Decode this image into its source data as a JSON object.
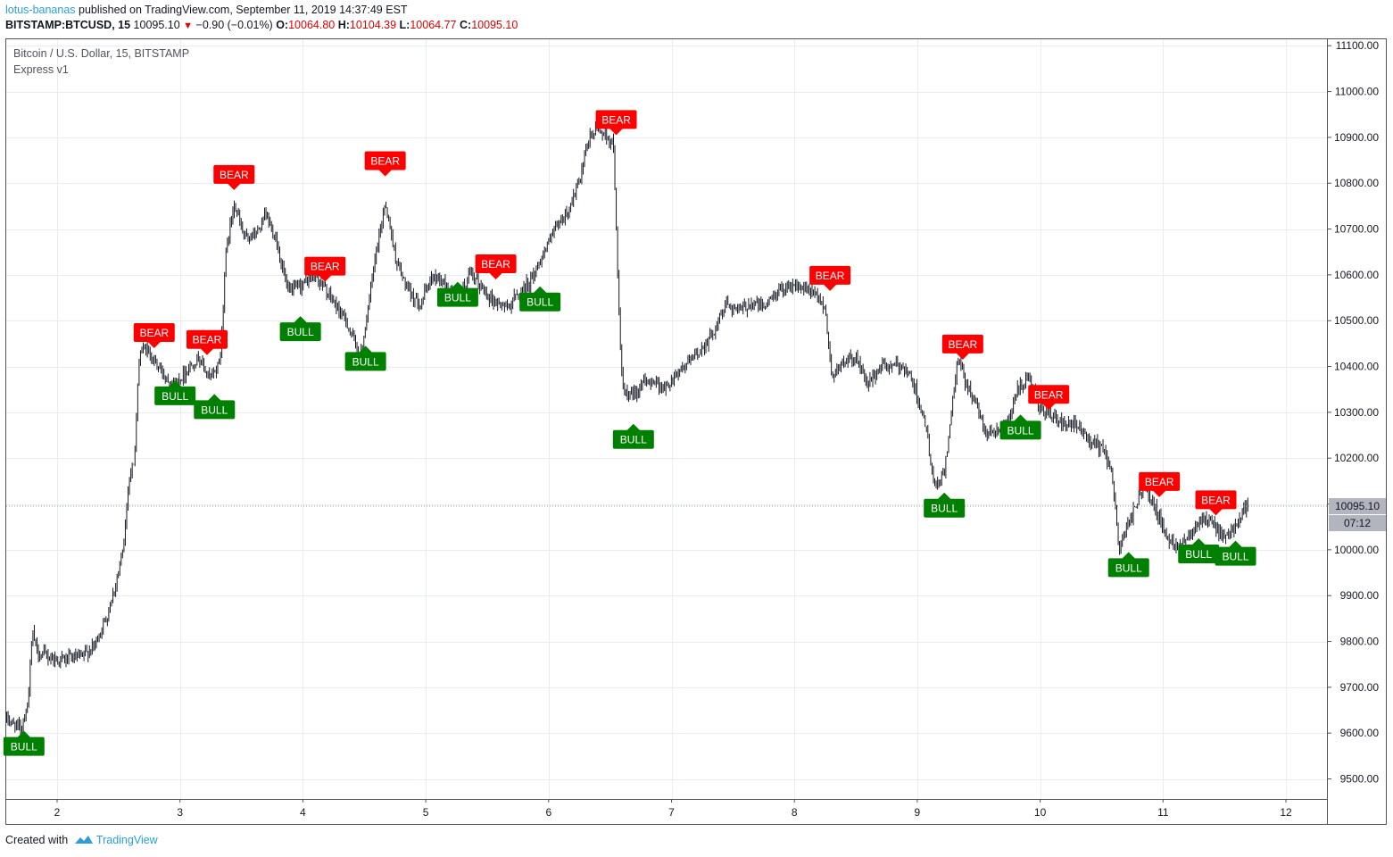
{
  "publish_info": {
    "username": "lotus-bananas",
    "text": "published on TradingView.com, September 11, 2019 14:37:49 EST"
  },
  "ohlc_bar": {
    "symbol": "BITSTAMP:BTCUSD, 15",
    "last": "10095.10",
    "change_arrow": "▼",
    "change": "−0.90 (−0.01%)",
    "o_label": "O:",
    "o_value": "10064.80",
    "h_label": "H:",
    "h_value": "10104.39",
    "l_label": "L:",
    "l_value": "10064.77",
    "c_label": "C:",
    "c_value": "10095.10"
  },
  "legend": {
    "title": "Bitcoin / U.S. Dollar, 15, BITSTAMP",
    "indicator": "Express v1"
  },
  "price_axis": {
    "last_price_label": "10095.10",
    "countdown": "07:12"
  },
  "footer": {
    "created_with": "Created with",
    "brand": "TradingView",
    "logo_icon": "tradingview-logo-icon"
  },
  "colors": {
    "bear": "#ff0000",
    "bull": "#008000",
    "candle": "#131722",
    "grid": "#e8edf2",
    "brand": "#2a9fd6",
    "axis_label_bg": "#b2b5be"
  },
  "chart_data": {
    "type": "candlestick",
    "title": "Bitcoin / U.S. Dollar, 15, BITSTAMP",
    "x_ticks": [
      2,
      3,
      4,
      5,
      6,
      7,
      8,
      9,
      10,
      11,
      12
    ],
    "xlim": [
      1.59,
      12.35
    ],
    "y_ticks": [
      "11100.00",
      "11000.00",
      "10900.00",
      "10800.00",
      "10700.00",
      "10600.00",
      "10500.00",
      "10400.00",
      "10300.00",
      "10200.00",
      "10100.00",
      "10000.00",
      "9900.00",
      "9800.00",
      "9700.00",
      "9600.00",
      "9500.00"
    ],
    "ylim": [
      9470,
      11120
    ],
    "grid": true,
    "last_price": 10095.1,
    "price_path": [
      [
        1.59,
        9630
      ],
      [
        1.7,
        9610
      ],
      [
        1.76,
        9660
      ],
      [
        1.8,
        9820
      ],
      [
        1.84,
        9775
      ],
      [
        2.0,
        9760
      ],
      [
        2.2,
        9765
      ],
      [
        2.3,
        9790
      ],
      [
        2.4,
        9850
      ],
      [
        2.48,
        9930
      ],
      [
        2.54,
        10000
      ],
      [
        2.58,
        10150
      ],
      [
        2.63,
        10200
      ],
      [
        2.67,
        10430
      ],
      [
        2.72,
        10440
      ],
      [
        2.85,
        10390
      ],
      [
        2.95,
        10360
      ],
      [
        3.05,
        10390
      ],
      [
        3.15,
        10420
      ],
      [
        3.25,
        10370
      ],
      [
        3.33,
        10420
      ],
      [
        3.37,
        10640
      ],
      [
        3.44,
        10760
      ],
      [
        3.52,
        10680
      ],
      [
        3.62,
        10690
      ],
      [
        3.7,
        10730
      ],
      [
        3.78,
        10680
      ],
      [
        3.88,
        10560
      ],
      [
        4.0,
        10580
      ],
      [
        4.1,
        10600
      ],
      [
        4.25,
        10540
      ],
      [
        4.35,
        10500
      ],
      [
        4.47,
        10420
      ],
      [
        4.58,
        10620
      ],
      [
        4.67,
        10760
      ],
      [
        4.76,
        10630
      ],
      [
        4.86,
        10560
      ],
      [
        4.96,
        10540
      ],
      [
        5.06,
        10600
      ],
      [
        5.16,
        10580
      ],
      [
        5.26,
        10550
      ],
      [
        5.36,
        10600
      ],
      [
        5.46,
        10570
      ],
      [
        5.56,
        10540
      ],
      [
        5.66,
        10530
      ],
      [
        5.76,
        10560
      ],
      [
        5.86,
        10590
      ],
      [
        5.96,
        10650
      ],
      [
        6.06,
        10700
      ],
      [
        6.16,
        10740
      ],
      [
        6.26,
        10810
      ],
      [
        6.33,
        10900
      ],
      [
        6.4,
        10920
      ],
      [
        6.48,
        10900
      ],
      [
        6.53,
        10880
      ],
      [
        6.56,
        10600
      ],
      [
        6.6,
        10350
      ],
      [
        6.66,
        10330
      ],
      [
        6.75,
        10360
      ],
      [
        6.85,
        10370
      ],
      [
        6.95,
        10350
      ],
      [
        7.05,
        10390
      ],
      [
        7.15,
        10410
      ],
      [
        7.25,
        10440
      ],
      [
        7.35,
        10480
      ],
      [
        7.45,
        10540
      ],
      [
        7.55,
        10520
      ],
      [
        7.65,
        10540
      ],
      [
        7.75,
        10530
      ],
      [
        7.85,
        10560
      ],
      [
        7.95,
        10580
      ],
      [
        8.05,
        10570
      ],
      [
        8.15,
        10560
      ],
      [
        8.25,
        10530
      ],
      [
        8.3,
        10380
      ],
      [
        8.4,
        10410
      ],
      [
        8.5,
        10420
      ],
      [
        8.6,
        10360
      ],
      [
        8.7,
        10400
      ],
      [
        8.8,
        10400
      ],
      [
        8.9,
        10400
      ],
      [
        9.0,
        10340
      ],
      [
        9.08,
        10250
      ],
      [
        9.14,
        10130
      ],
      [
        9.22,
        10170
      ],
      [
        9.28,
        10300
      ],
      [
        9.33,
        10420
      ],
      [
        9.4,
        10360
      ],
      [
        9.48,
        10320
      ],
      [
        9.55,
        10260
      ],
      [
        9.65,
        10260
      ],
      [
        9.75,
        10290
      ],
      [
        9.82,
        10350
      ],
      [
        9.9,
        10370
      ],
      [
        10.0,
        10310
      ],
      [
        10.1,
        10290
      ],
      [
        10.2,
        10270
      ],
      [
        10.3,
        10270
      ],
      [
        10.4,
        10240
      ],
      [
        10.5,
        10220
      ],
      [
        10.58,
        10180
      ],
      [
        10.64,
        10000
      ],
      [
        10.72,
        10060
      ],
      [
        10.8,
        10110
      ],
      [
        10.86,
        10140
      ],
      [
        10.95,
        10080
      ],
      [
        11.05,
        10020
      ],
      [
        11.12,
        10010
      ],
      [
        11.2,
        10030
      ],
      [
        11.3,
        10070
      ],
      [
        11.4,
        10060
      ],
      [
        11.5,
        10020
      ],
      [
        11.58,
        10050
      ],
      [
        11.66,
        10090
      ],
      [
        11.69,
        10095.1
      ]
    ],
    "signals": [
      {
        "label": "BULL",
        "x": 1.73,
        "y": 9605
      },
      {
        "label": "BEAR",
        "x": 2.79,
        "y": 10440
      },
      {
        "label": "BULL",
        "x": 2.96,
        "y": 10370
      },
      {
        "label": "BEAR",
        "x": 3.22,
        "y": 10425
      },
      {
        "label": "BULL",
        "x": 3.28,
        "y": 10340
      },
      {
        "label": "BEAR",
        "x": 3.44,
        "y": 10785
      },
      {
        "label": "BULL",
        "x": 3.98,
        "y": 10510
      },
      {
        "label": "BEAR",
        "x": 4.18,
        "y": 10585
      },
      {
        "label": "BULL",
        "x": 4.51,
        "y": 10445
      },
      {
        "label": "BEAR",
        "x": 4.67,
        "y": 10815
      },
      {
        "label": "BULL",
        "x": 5.26,
        "y": 10585
      },
      {
        "label": "BEAR",
        "x": 5.57,
        "y": 10590
      },
      {
        "label": "BULL",
        "x": 5.93,
        "y": 10575
      },
      {
        "label": "BEAR",
        "x": 6.55,
        "y": 10905
      },
      {
        "label": "BULL",
        "x": 6.69,
        "y": 10275
      },
      {
        "label": "BEAR",
        "x": 8.29,
        "y": 10565
      },
      {
        "label": "BULL",
        "x": 9.22,
        "y": 10125
      },
      {
        "label": "BEAR",
        "x": 9.37,
        "y": 10415
      },
      {
        "label": "BULL",
        "x": 9.84,
        "y": 10295
      },
      {
        "label": "BEAR",
        "x": 10.07,
        "y": 10305
      },
      {
        "label": "BULL",
        "x": 10.72,
        "y": 9995
      },
      {
        "label": "BEAR",
        "x": 10.97,
        "y": 10115
      },
      {
        "label": "BULL",
        "x": 11.29,
        "y": 10025
      },
      {
        "label": "BEAR",
        "x": 11.43,
        "y": 10075
      },
      {
        "label": "BULL",
        "x": 11.59,
        "y": 10020
      }
    ]
  }
}
